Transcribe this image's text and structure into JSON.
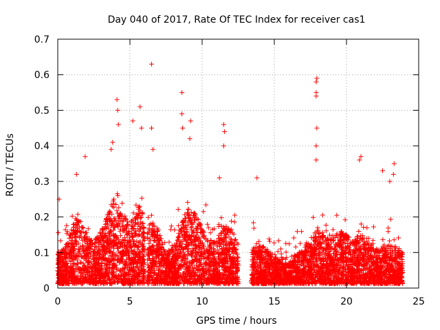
{
  "chart_data": {
    "type": "scatter",
    "title": "Day 040 of 2017, Rate Of TEC Index for receiver cas1",
    "xlabel": "GPS time / hours",
    "ylabel": "ROTI / TECUs",
    "xlim": [
      0,
      25
    ],
    "ylim": [
      0,
      0.7
    ],
    "xticks": [
      0,
      5,
      10,
      15,
      20,
      25
    ],
    "xtick_labels": [
      "0",
      "5",
      "10",
      "15",
      "20",
      "25"
    ],
    "yticks": [
      0,
      0.1,
      0.2,
      0.3,
      0.4,
      0.5,
      0.6,
      0.7
    ],
    "ytick_labels": [
      "0",
      "0.1",
      "0.2",
      "0.3",
      "0.4",
      "0.5",
      "0.6",
      "0.7"
    ],
    "grid": true,
    "marker": "+",
    "series_color": "#ff0000",
    "gaps_hours": [
      [
        6.05,
        6.2
      ],
      [
        12.5,
        13.4
      ]
    ],
    "envelope": {
      "hours": [
        0.0,
        0.5,
        1.0,
        1.4,
        2.0,
        2.5,
        3.0,
        3.5,
        3.8,
        4.1,
        4.5,
        5.0,
        5.5,
        5.8,
        6.0,
        6.5,
        7.0,
        7.5,
        8.0,
        8.5,
        9.0,
        9.5,
        10.0,
        10.5,
        11.0,
        11.5,
        12.0,
        12.4,
        13.5,
        14.0,
        14.5,
        15.0,
        15.5,
        16.0,
        16.5,
        17.0,
        17.5,
        18.0,
        18.5,
        19.0,
        19.5,
        20.0,
        20.5,
        21.0,
        21.5,
        22.0,
        22.5,
        23.0,
        23.5,
        23.9
      ],
      "typical_roti": [
        0.09,
        0.1,
        0.16,
        0.2,
        0.14,
        0.12,
        0.15,
        0.2,
        0.24,
        0.22,
        0.2,
        0.17,
        0.2,
        0.26,
        0.14,
        0.18,
        0.15,
        0.09,
        0.1,
        0.16,
        0.22,
        0.2,
        0.16,
        0.13,
        0.12,
        0.16,
        0.17,
        0.12,
        0.1,
        0.11,
        0.1,
        0.08,
        0.06,
        0.06,
        0.08,
        0.1,
        0.12,
        0.16,
        0.14,
        0.13,
        0.15,
        0.14,
        0.12,
        0.14,
        0.12,
        0.1,
        0.1,
        0.11,
        0.1,
        0.09
      ]
    },
    "notable_points": [
      {
        "x": 0.1,
        "y": 0.25
      },
      {
        "x": 1.3,
        "y": 0.32
      },
      {
        "x": 1.9,
        "y": 0.37
      },
      {
        "x": 3.7,
        "y": 0.39
      },
      {
        "x": 3.8,
        "y": 0.41
      },
      {
        "x": 4.1,
        "y": 0.53
      },
      {
        "x": 4.15,
        "y": 0.5
      },
      {
        "x": 4.2,
        "y": 0.46
      },
      {
        "x": 5.2,
        "y": 0.47
      },
      {
        "x": 5.7,
        "y": 0.51
      },
      {
        "x": 5.8,
        "y": 0.45
      },
      {
        "x": 6.5,
        "y": 0.63
      },
      {
        "x": 6.5,
        "y": 0.45
      },
      {
        "x": 6.6,
        "y": 0.39
      },
      {
        "x": 8.6,
        "y": 0.55
      },
      {
        "x": 8.6,
        "y": 0.49
      },
      {
        "x": 8.65,
        "y": 0.45
      },
      {
        "x": 9.2,
        "y": 0.47
      },
      {
        "x": 9.15,
        "y": 0.42
      },
      {
        "x": 11.5,
        "y": 0.46
      },
      {
        "x": 11.55,
        "y": 0.44
      },
      {
        "x": 11.5,
        "y": 0.4
      },
      {
        "x": 11.2,
        "y": 0.31
      },
      {
        "x": 13.8,
        "y": 0.31
      },
      {
        "x": 17.9,
        "y": 0.58
      },
      {
        "x": 17.95,
        "y": 0.59
      },
      {
        "x": 17.9,
        "y": 0.55
      },
      {
        "x": 17.9,
        "y": 0.54
      },
      {
        "x": 17.95,
        "y": 0.45
      },
      {
        "x": 17.9,
        "y": 0.4
      },
      {
        "x": 17.9,
        "y": 0.36
      },
      {
        "x": 20.9,
        "y": 0.36
      },
      {
        "x": 21.0,
        "y": 0.37
      },
      {
        "x": 22.5,
        "y": 0.33
      },
      {
        "x": 23.0,
        "y": 0.3
      },
      {
        "x": 23.3,
        "y": 0.35
      },
      {
        "x": 23.25,
        "y": 0.32
      }
    ]
  }
}
